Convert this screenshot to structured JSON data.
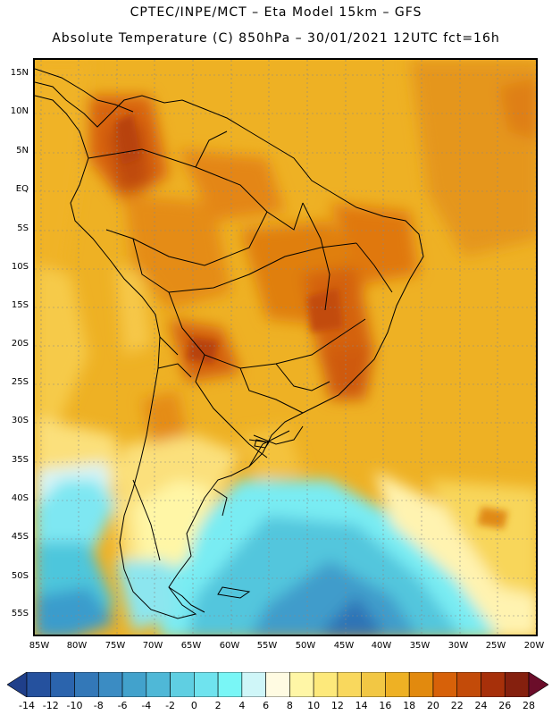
{
  "title_line1": "CPTEC/INPE/MCT –  Eta Model 15km – GFS",
  "title_line2": "Absolute Temperature (C) 850hPa – 30/01/2021 12UTC fct=16h",
  "lat_labels": [
    "15N",
    "10N",
    "5N",
    "EQ",
    "5S",
    "10S",
    "15S",
    "20S",
    "25S",
    "30S",
    "35S",
    "40S",
    "45S",
    "50S",
    "55S"
  ],
  "lon_labels": [
    "85W",
    "80W",
    "75W",
    "70W",
    "65W",
    "60W",
    "55W",
    "50W",
    "45W",
    "40W",
    "35W",
    "30W",
    "25W",
    "20W"
  ],
  "colorbar": {
    "labels": [
      "-14",
      "-12",
      "-10",
      "-8",
      "-6",
      "-4",
      "-2",
      "0",
      "2",
      "4",
      "6",
      "8",
      "10",
      "12",
      "14",
      "16",
      "18",
      "20",
      "22",
      "24",
      "26",
      "28"
    ],
    "colors": [
      "#1f3f8a",
      "#25519e",
      "#2b64ad",
      "#3378b8",
      "#3b8cc3",
      "#42a2cc",
      "#4fb8d7",
      "#5fcfe2",
      "#6fe3ee",
      "#79f6f6",
      "#cff6f8",
      "#fffbe2",
      "#fff6a6",
      "#fde97b",
      "#f9d85d",
      "#f2c744",
      "#eeb124",
      "#e28a0e",
      "#d76109",
      "#c34b09",
      "#a7300a",
      "#85200e",
      "#6b0d2a"
    ]
  }
}
